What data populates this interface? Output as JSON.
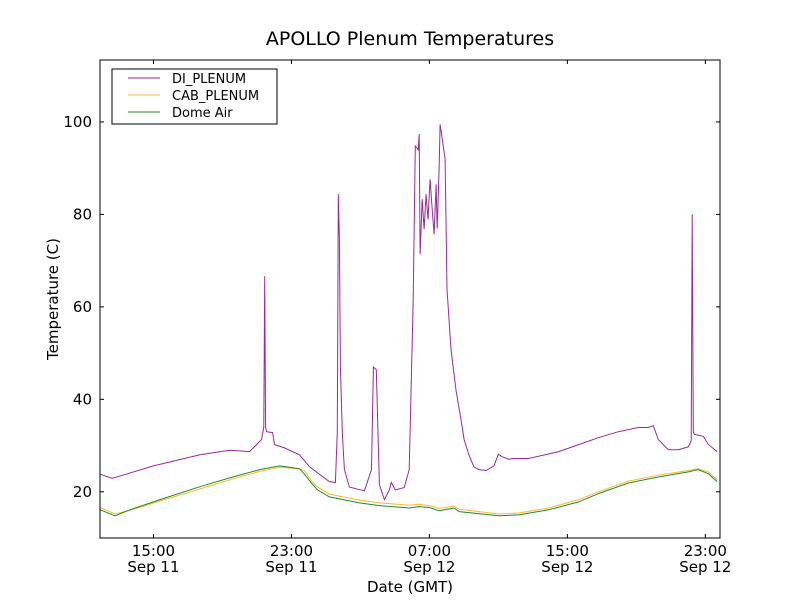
{
  "chart_data": {
    "type": "line",
    "title": "APOLLO Plenum Temperatures",
    "xlabel": "Date (GMT)",
    "ylabel": "Temperature (C)",
    "x_units": "hours since Sep 11 00:00 GMT",
    "xlim": [
      11.9,
      47.85
    ],
    "ylim": [
      10,
      113.4
    ],
    "grid": false,
    "legend_placement": "top-left",
    "xticks": [
      {
        "value": 15,
        "time": "15:00",
        "date": "Sep 11"
      },
      {
        "value": 23,
        "time": "23:00",
        "date": "Sep 11"
      },
      {
        "value": 31,
        "time": "07:00",
        "date": "Sep 12"
      },
      {
        "value": 39,
        "time": "15:00",
        "date": "Sep 12"
      },
      {
        "value": 47,
        "time": "23:00",
        "date": "Sep 12"
      }
    ],
    "yticks": [
      20,
      40,
      60,
      80,
      100
    ],
    "series": [
      {
        "name": "DI_PLENUM",
        "color": "#9a2a9a",
        "x": [
          11.91,
          12.6,
          15,
          17.69,
          19.42,
          20.58,
          21.27,
          21.4,
          21.45,
          21.5,
          21.56,
          21.91,
          22.02,
          22.6,
          23.47,
          24.05,
          25.2,
          25.55,
          25.66,
          25.72,
          25.78,
          25.84,
          25.95,
          26.07,
          26.36,
          27.23,
          27.64,
          27.75,
          27.92,
          28.1,
          28.39,
          28.68,
          28.79,
          29.02,
          29.54,
          29.83,
          30.06,
          30.18,
          30.35,
          30.41,
          30.46,
          30.58,
          30.69,
          30.81,
          30.92,
          31.04,
          31.16,
          31.27,
          31.39,
          31.45,
          31.56,
          31.62,
          31.91,
          32.02,
          32.25,
          32.54,
          32.83,
          33.01,
          33.29,
          33.58,
          33.87,
          34.28,
          34.74,
          35.0,
          35.2,
          35.61,
          35.84,
          36.76,
          38.5,
          39.65,
          40.8,
          41.96,
          43.12,
          43.69,
          43.98,
          44.27,
          44.85,
          45.43,
          46.01,
          46.18,
          46.24,
          46.3,
          46.36,
          46.88,
          47.17,
          47.69
        ],
        "y": [
          23.8,
          22.9,
          25.6,
          28,
          29,
          28.7,
          31.3,
          34,
          66.6,
          34,
          33,
          32.8,
          30.2,
          29.5,
          28,
          25.4,
          22.2,
          22,
          33,
          84.4,
          74.6,
          47,
          32.8,
          24.8,
          21,
          20.2,
          24.8,
          47,
          46.4,
          21.5,
          18.3,
          20.4,
          22,
          20.4,
          20.9,
          24.8,
          61.6,
          94.8,
          94,
          97.4,
          71.4,
          83.3,
          76.8,
          84.4,
          78.9,
          87.6,
          81,
          75.7,
          86.5,
          77,
          89.8,
          99.5,
          92,
          63.8,
          50.8,
          42,
          35.6,
          31.3,
          28,
          25.4,
          24.8,
          24.6,
          25.6,
          28.1,
          27.6,
          27,
          27.2,
          27.2,
          28.7,
          30.2,
          31.7,
          33,
          33.9,
          33.9,
          34.3,
          31.3,
          29.1,
          29.1,
          29.7,
          31,
          80,
          33,
          32.4,
          32,
          30.2,
          28.7
        ]
      },
      {
        "name": "CAB_PLENUM",
        "color": "#ffb733",
        "x": [
          11.91,
          12.77,
          13.64,
          15.38,
          17.69,
          19.42,
          21.16,
          22.31,
          23.47,
          23.76,
          24.16,
          24.51,
          25.2,
          26.94,
          28.1,
          29.83,
          30.41,
          30.99,
          31.56,
          32.43,
          32.72,
          35.03,
          36.18,
          37.92,
          39.65,
          40.8,
          42.54,
          44.27,
          46.01,
          46.58,
          47.17,
          47.69
        ],
        "y": [
          16.6,
          15.2,
          16.0,
          18.0,
          20.6,
          22.6,
          24.4,
          25.3,
          25.0,
          24.5,
          22.4,
          21.0,
          19.5,
          18.2,
          17.6,
          17.1,
          17.3,
          17.0,
          16.4,
          16.9,
          16.2,
          15.2,
          15.4,
          16.5,
          18.3,
          20.0,
          22.3,
          23.6,
          24.6,
          25.0,
          24.3,
          22.6
        ]
      },
      {
        "name": "Dome Air",
        "color": "#228b22",
        "x": [
          11.91,
          12.77,
          13.64,
          15.38,
          17.69,
          19.42,
          21.16,
          22.31,
          23.47,
          23.76,
          24.16,
          24.51,
          25.2,
          26.94,
          28.1,
          29.83,
          30.41,
          30.99,
          31.56,
          32.43,
          32.72,
          35.03,
          36.18,
          37.92,
          39.65,
          40.8,
          42.54,
          44.27,
          46.01,
          46.58,
          47.17,
          47.69
        ],
        "y": [
          16.1,
          14.8,
          16.1,
          18.3,
          21.1,
          23.0,
          24.8,
          25.6,
          25.0,
          23.8,
          21.9,
          20.4,
          18.9,
          17.6,
          17.0,
          16.5,
          16.8,
          16.6,
          15.9,
          16.5,
          15.7,
          14.8,
          15.0,
          16.1,
          17.8,
          19.6,
          21.9,
          23.2,
          24.3,
          24.8,
          23.9,
          22.2
        ]
      }
    ]
  }
}
